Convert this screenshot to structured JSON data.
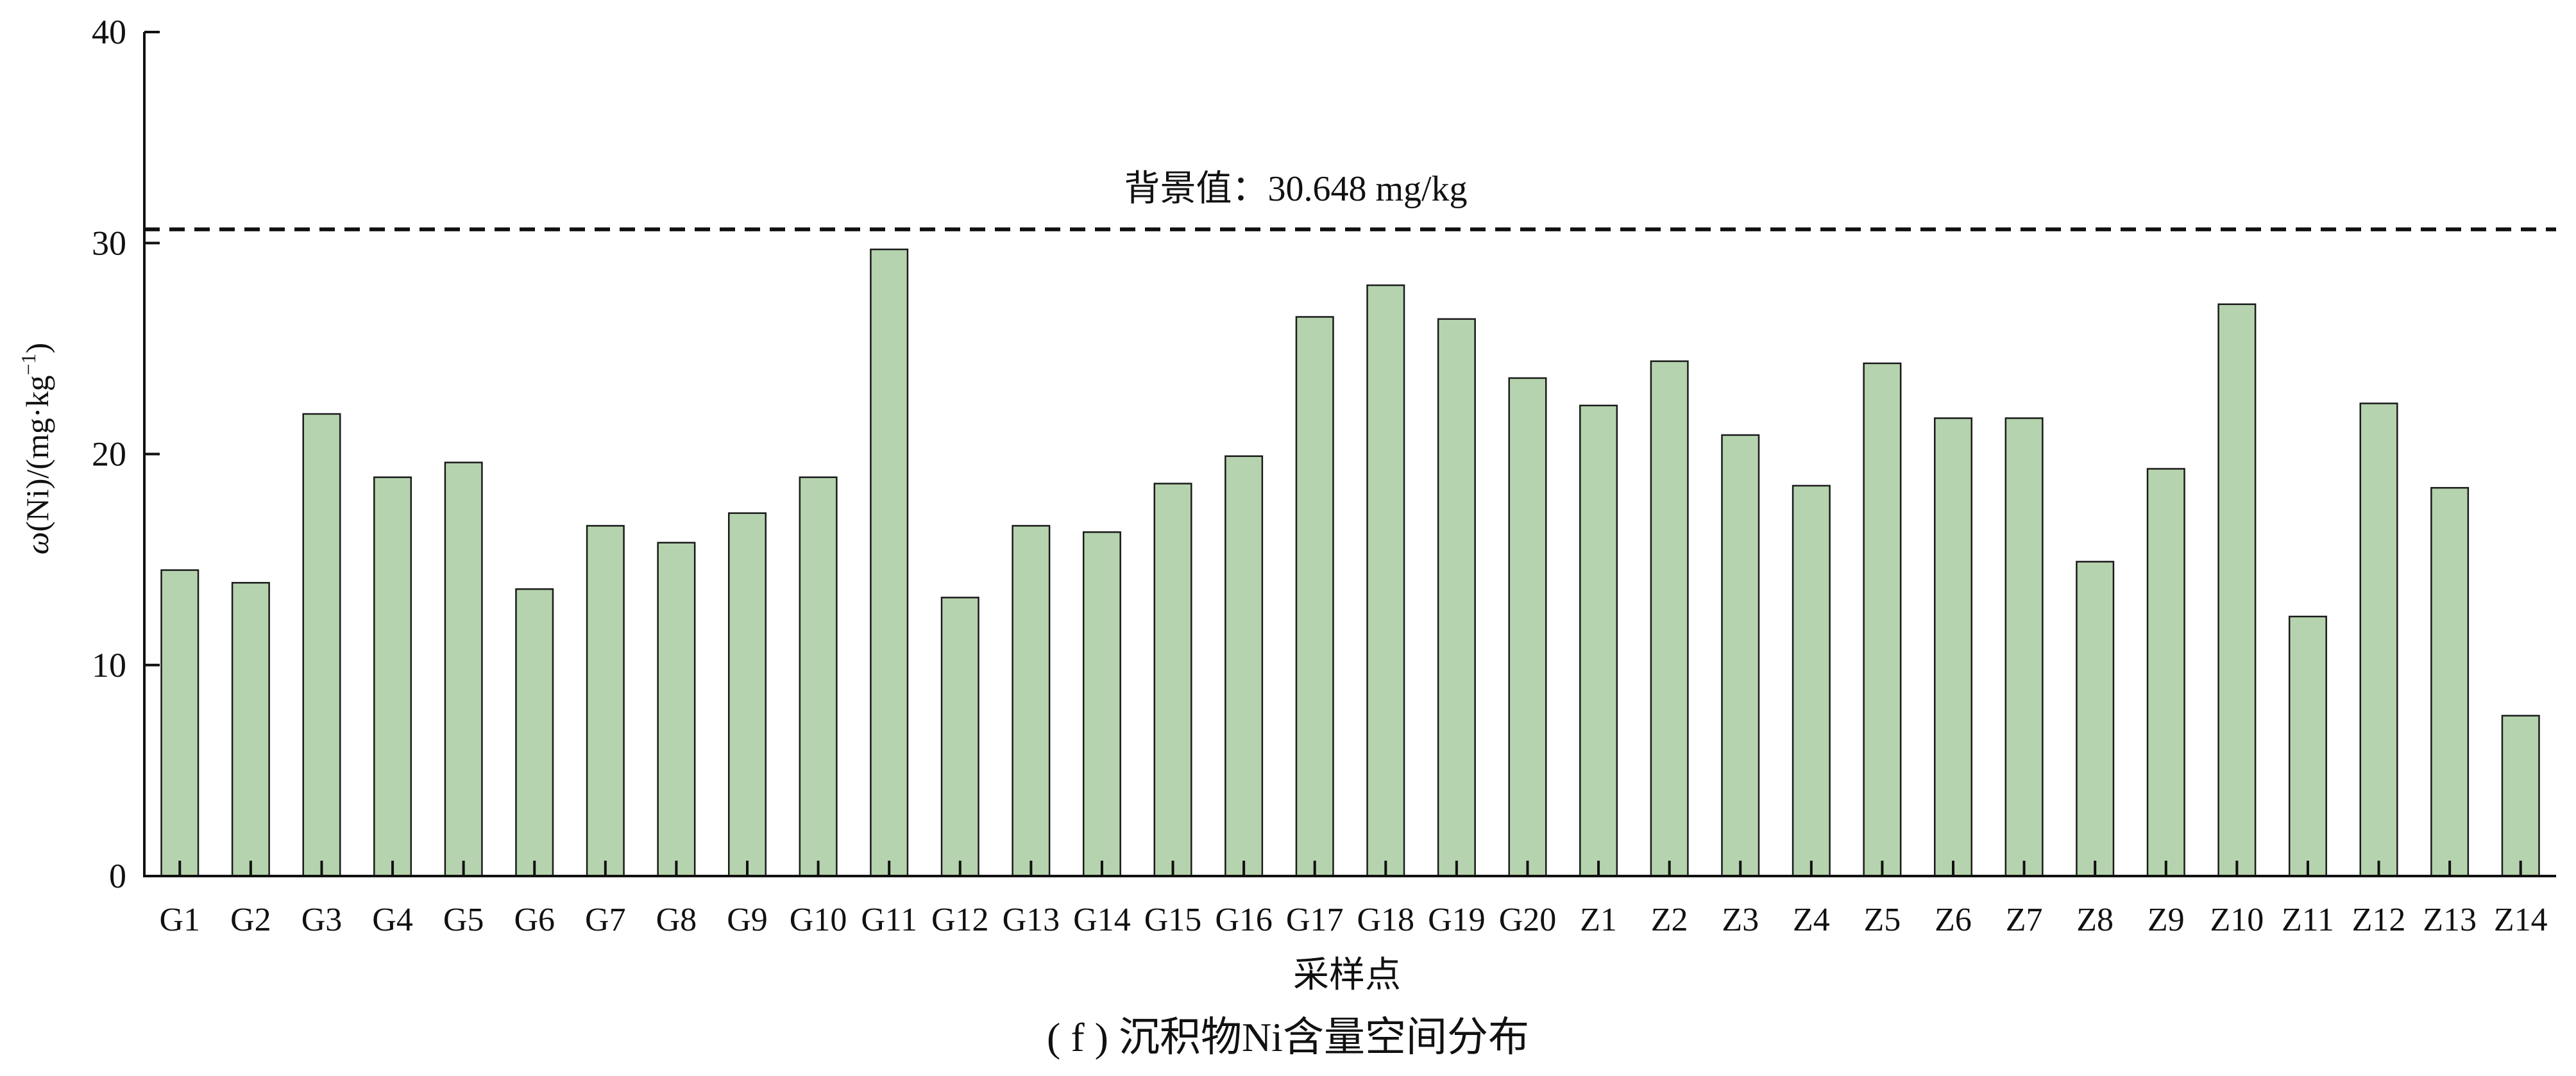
{
  "chart_data": {
    "type": "bar",
    "title": "( f ) 沉积物Ni含量空间分布",
    "xlabel": "采样点",
    "ylabel": "ω(Ni)/(mg·kg⁻¹)",
    "ylabel_parts": {
      "omega": "ω",
      "main": "(Ni)/(mg·kg",
      "sup": "−1",
      "close": ")"
    },
    "ylim": [
      0,
      40
    ],
    "yticks": [
      0,
      10,
      20,
      30,
      40
    ],
    "grid": false,
    "bar_color": "#b5d3ae",
    "bar_edge_color": "#1a1a1a",
    "categories": [
      "G1",
      "G2",
      "G3",
      "G4",
      "G5",
      "G6",
      "G7",
      "G8",
      "G9",
      "G10",
      "G11",
      "G12",
      "G13",
      "G14",
      "G15",
      "G16",
      "G17",
      "G18",
      "G19",
      "G20",
      "Z1",
      "Z2",
      "Z3",
      "Z4",
      "Z5",
      "Z6",
      "Z7",
      "Z8",
      "Z9",
      "Z10",
      "Z11",
      "Z12",
      "Z13",
      "Z14"
    ],
    "values": [
      14.5,
      13.9,
      21.9,
      18.9,
      19.6,
      13.6,
      16.6,
      15.8,
      17.2,
      18.9,
      29.7,
      13.2,
      16.6,
      16.3,
      18.6,
      19.9,
      26.5,
      28.0,
      26.4,
      23.6,
      22.3,
      24.4,
      20.9,
      18.5,
      24.3,
      21.7,
      21.7,
      14.9,
      19.3,
      27.1,
      12.3,
      22.4,
      18.4,
      7.6
    ],
    "reference_line": {
      "value": 30.648,
      "label": "背景值：30.648 mg/kg",
      "style": "dashed"
    }
  }
}
